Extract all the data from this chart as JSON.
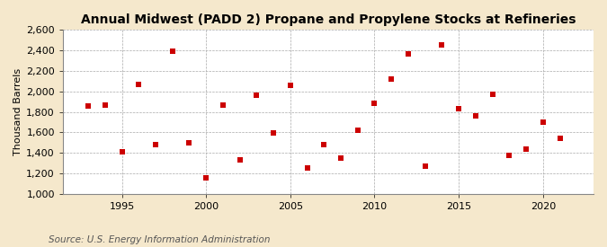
{
  "title": "Annual Midwest (PADD 2) Propane and Propylene Stocks at Refineries",
  "ylabel": "Thousand Barrels",
  "source": "Source: U.S. Energy Information Administration",
  "fig_background_color": "#f5e8cc",
  "plot_background_color": "#ffffff",
  "marker_color": "#cc0000",
  "marker_size": 18,
  "years": [
    1993,
    1994,
    1995,
    1996,
    1997,
    1998,
    1999,
    2000,
    2001,
    2002,
    2003,
    2004,
    2005,
    2006,
    2007,
    2008,
    2009,
    2010,
    2011,
    2012,
    2013,
    2014,
    2015,
    2016,
    2017,
    2018,
    2019,
    2020,
    2021
  ],
  "values": [
    1855,
    1865,
    1410,
    2065,
    1480,
    2390,
    1500,
    1160,
    1870,
    1330,
    1960,
    1595,
    2060,
    1255,
    1485,
    1350,
    1620,
    1880,
    2120,
    2360,
    1270,
    2450,
    1830,
    1760,
    1975,
    1375,
    1435,
    1700,
    1545
  ],
  "ylim": [
    1000,
    2600
  ],
  "yticks": [
    1000,
    1200,
    1400,
    1600,
    1800,
    2000,
    2200,
    2400,
    2600
  ],
  "xlim": [
    1991.5,
    2023
  ],
  "xticks": [
    1995,
    2000,
    2005,
    2010,
    2015,
    2020
  ],
  "title_fontsize": 10,
  "axis_fontsize": 8,
  "source_fontsize": 7.5
}
